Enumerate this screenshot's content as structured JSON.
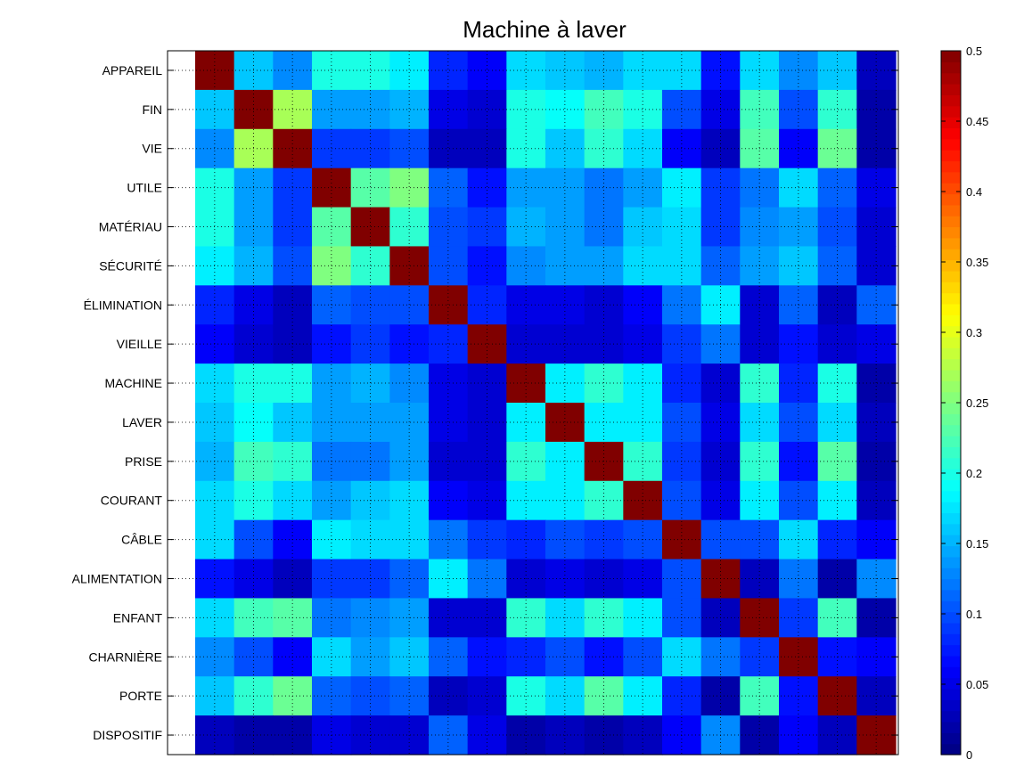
{
  "chart_data": {
    "type": "heatmap",
    "title": "Machine à laver",
    "xlabel": "",
    "ylabel": "",
    "labels": [
      "APPAREIL",
      "FIN",
      "VIE",
      "UTILE",
      "MATÉRIAU",
      "SÉCURITÉ",
      "ÉLIMINATION",
      "VIEILLE",
      "MACHINE",
      "LAVER",
      "PRISE",
      "COURANT",
      "CÂBLE",
      "ALIMENTATION",
      "ENFANT",
      "CHARNIÈRE",
      "PORTE",
      "DISPOSITIF"
    ],
    "colorbar": {
      "range": [
        0,
        0.5
      ],
      "ticks": [
        0,
        0.05,
        0.1,
        0.15,
        0.2,
        0.25,
        0.3,
        0.35,
        0.4,
        0.45,
        0.5
      ],
      "tick_labels": [
        "0",
        "0.05",
        "0.1",
        "0.15",
        "0.2",
        "0.25",
        "0.3",
        "0.35",
        "0.4",
        "0.45",
        "0.5"
      ],
      "colormap": "jet"
    },
    "grid": true,
    "matrix": [
      [
        0.5,
        0.16,
        0.13,
        0.2,
        0.2,
        0.18,
        0.08,
        0.06,
        0.17,
        0.16,
        0.15,
        0.17,
        0.17,
        0.07,
        0.17,
        0.13,
        0.16,
        0.03
      ],
      [
        0.16,
        0.5,
        0.27,
        0.14,
        0.14,
        0.15,
        0.05,
        0.04,
        0.2,
        0.19,
        0.22,
        0.2,
        0.1,
        0.05,
        0.22,
        0.1,
        0.21,
        0.02
      ],
      [
        0.13,
        0.27,
        0.5,
        0.09,
        0.09,
        0.1,
        0.03,
        0.03,
        0.2,
        0.16,
        0.21,
        0.17,
        0.06,
        0.03,
        0.23,
        0.06,
        0.24,
        0.02
      ],
      [
        0.2,
        0.14,
        0.09,
        0.5,
        0.23,
        0.25,
        0.11,
        0.07,
        0.14,
        0.14,
        0.12,
        0.14,
        0.18,
        0.09,
        0.12,
        0.17,
        0.11,
        0.05
      ],
      [
        0.2,
        0.14,
        0.09,
        0.23,
        0.5,
        0.21,
        0.1,
        0.09,
        0.15,
        0.14,
        0.12,
        0.16,
        0.17,
        0.09,
        0.13,
        0.14,
        0.1,
        0.04
      ],
      [
        0.18,
        0.15,
        0.1,
        0.25,
        0.21,
        0.5,
        0.1,
        0.07,
        0.13,
        0.14,
        0.14,
        0.17,
        0.17,
        0.11,
        0.14,
        0.16,
        0.11,
        0.04
      ],
      [
        0.08,
        0.05,
        0.03,
        0.11,
        0.1,
        0.1,
        0.5,
        0.08,
        0.05,
        0.05,
        0.04,
        0.06,
        0.12,
        0.18,
        0.04,
        0.11,
        0.03,
        0.11
      ],
      [
        0.06,
        0.04,
        0.03,
        0.07,
        0.09,
        0.07,
        0.08,
        0.5,
        0.04,
        0.04,
        0.04,
        0.05,
        0.09,
        0.12,
        0.04,
        0.07,
        0.04,
        0.05
      ],
      [
        0.17,
        0.2,
        0.2,
        0.14,
        0.15,
        0.13,
        0.05,
        0.04,
        0.5,
        0.18,
        0.21,
        0.18,
        0.08,
        0.04,
        0.21,
        0.08,
        0.2,
        0.02
      ],
      [
        0.16,
        0.19,
        0.16,
        0.14,
        0.14,
        0.14,
        0.05,
        0.04,
        0.18,
        0.5,
        0.18,
        0.18,
        0.1,
        0.05,
        0.17,
        0.1,
        0.17,
        0.03
      ],
      [
        0.15,
        0.22,
        0.21,
        0.12,
        0.12,
        0.14,
        0.04,
        0.04,
        0.21,
        0.18,
        0.5,
        0.21,
        0.09,
        0.04,
        0.21,
        0.07,
        0.23,
        0.02
      ],
      [
        0.17,
        0.2,
        0.17,
        0.14,
        0.16,
        0.17,
        0.06,
        0.05,
        0.18,
        0.18,
        0.21,
        0.5,
        0.1,
        0.05,
        0.18,
        0.1,
        0.18,
        0.03
      ],
      [
        0.17,
        0.1,
        0.06,
        0.18,
        0.17,
        0.17,
        0.12,
        0.09,
        0.08,
        0.1,
        0.09,
        0.1,
        0.5,
        0.1,
        0.1,
        0.17,
        0.08,
        0.06
      ],
      [
        0.07,
        0.05,
        0.03,
        0.09,
        0.09,
        0.11,
        0.18,
        0.12,
        0.04,
        0.05,
        0.04,
        0.05,
        0.1,
        0.5,
        0.03,
        0.12,
        0.02,
        0.13
      ],
      [
        0.17,
        0.22,
        0.23,
        0.12,
        0.13,
        0.14,
        0.04,
        0.04,
        0.21,
        0.17,
        0.21,
        0.18,
        0.1,
        0.03,
        0.5,
        0.09,
        0.22,
        0.02
      ],
      [
        0.13,
        0.1,
        0.06,
        0.17,
        0.14,
        0.16,
        0.11,
        0.07,
        0.08,
        0.1,
        0.07,
        0.1,
        0.17,
        0.12,
        0.09,
        0.5,
        0.07,
        0.06
      ],
      [
        0.16,
        0.21,
        0.24,
        0.11,
        0.1,
        0.11,
        0.03,
        0.04,
        0.2,
        0.17,
        0.23,
        0.18,
        0.08,
        0.02,
        0.22,
        0.07,
        0.5,
        0.03
      ],
      [
        0.03,
        0.02,
        0.02,
        0.05,
        0.04,
        0.04,
        0.11,
        0.05,
        0.02,
        0.03,
        0.02,
        0.03,
        0.06,
        0.13,
        0.02,
        0.06,
        0.03,
        0.5
      ]
    ]
  }
}
